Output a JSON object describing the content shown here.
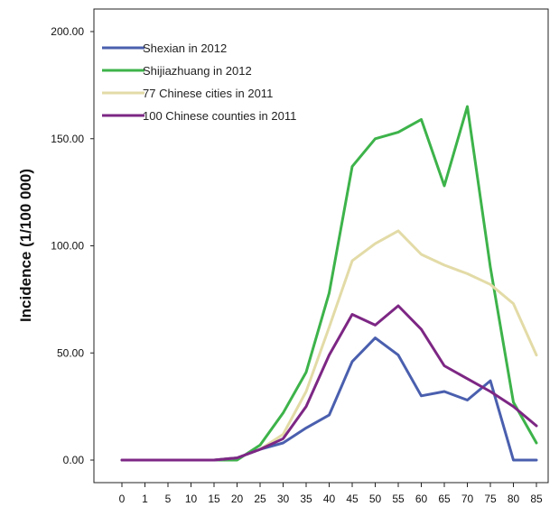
{
  "chart_data": {
    "type": "line",
    "title": "",
    "xlabel": "",
    "ylabel": "Incidence (1/100 000)",
    "categories": [
      "0",
      "1",
      "5",
      "10",
      "15",
      "20",
      "25",
      "30",
      "35",
      "40",
      "45",
      "50",
      "55",
      "60",
      "65",
      "70",
      "75",
      "80",
      "85"
    ],
    "y_ticks": [
      "0.00",
      "50.00",
      "100.00",
      "150.00",
      "200.00"
    ],
    "ylim": [
      0,
      200
    ],
    "grid": false,
    "legend_position": "top-left",
    "series": [
      {
        "name": "Shexian in 2012",
        "color": "#4a5fae",
        "values": [
          0,
          0,
          0,
          0,
          0,
          1,
          5,
          8,
          15,
          21,
          46,
          57,
          49,
          30,
          32,
          28,
          37,
          0,
          0
        ]
      },
      {
        "name": "Shijiazhuang in 2012",
        "color": "#3db34a",
        "values": [
          0,
          0,
          0,
          0,
          0,
          0,
          7,
          22,
          41,
          78,
          137,
          150,
          153,
          159,
          128,
          165,
          90,
          27,
          8
        ]
      },
      {
        "name": "77 Chinese cities in 2011",
        "color": "#e3dba7",
        "values": [
          0,
          0,
          0,
          0,
          0,
          1,
          5,
          12,
          32,
          62,
          93,
          101,
          107,
          96,
          91,
          87,
          82,
          73,
          49
        ]
      },
      {
        "name": "100 Chinese counties in 2011",
        "color": "#7d2784",
        "values": [
          0,
          0,
          0,
          0,
          0,
          1,
          5,
          10,
          25,
          49,
          68,
          63,
          72,
          61,
          44,
          38,
          32,
          25,
          16
        ]
      }
    ]
  }
}
